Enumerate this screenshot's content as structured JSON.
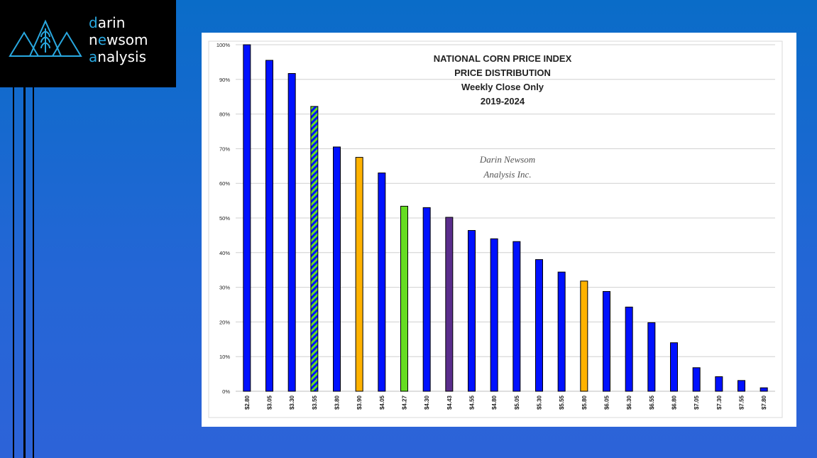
{
  "brand": {
    "line1": "darin",
    "line2": "newsom",
    "line3": "analysis",
    "accent_color": "#29a8e0"
  },
  "colors": {
    "background": "#1f66d2",
    "blue_bar": "#0011ff",
    "orange_bar": "#ffb200",
    "green_bar": "#66dd22",
    "purple_bar": "#5a2d8c",
    "hatch_green": "#66dd22",
    "hatch_blue": "#0011ff"
  },
  "chart_data": {
    "type": "bar",
    "title_lines": [
      "NATIONAL CORN PRICE INDEX",
      "PRICE DISTRIBUTION",
      "Weekly Close Only",
      "2019-2024"
    ],
    "watermark_lines": [
      "Darin Newsom",
      "Analysis Inc."
    ],
    "categories": [
      "$2.80",
      "$3.05",
      "$3.30",
      "$3.55",
      "$3.80",
      "$3.90",
      "$4.05",
      "$4.27",
      "$4.30",
      "$4.43",
      "$4.55",
      "$4.80",
      "$5.05",
      "$5.30",
      "$5.55",
      "$5.80",
      "$6.05",
      "$6.30",
      "$6.55",
      "$6.80",
      "$7.05",
      "$7.30",
      "$7.55",
      "$7.80"
    ],
    "values": [
      100,
      95.5,
      91.7,
      82.2,
      70.5,
      67.5,
      63,
      53.4,
      53,
      50.2,
      46.4,
      44,
      43.2,
      38,
      34.4,
      31.8,
      28.8,
      24.3,
      19.8,
      14,
      6.8,
      4.2,
      3.1,
      1
    ],
    "bar_styles": [
      "blue",
      "blue",
      "blue",
      "hatch",
      "blue",
      "orange",
      "blue",
      "green",
      "blue",
      "purple",
      "blue",
      "blue",
      "blue",
      "blue",
      "blue",
      "orange",
      "blue",
      "blue",
      "blue",
      "blue",
      "blue",
      "blue",
      "blue",
      "blue"
    ],
    "yticks": [
      "0%",
      "10%",
      "20%",
      "30%",
      "40%",
      "50%",
      "60%",
      "70%",
      "80%",
      "90%",
      "100%"
    ],
    "ylim": [
      0,
      100
    ],
    "grid": true,
    "legend": "none"
  }
}
